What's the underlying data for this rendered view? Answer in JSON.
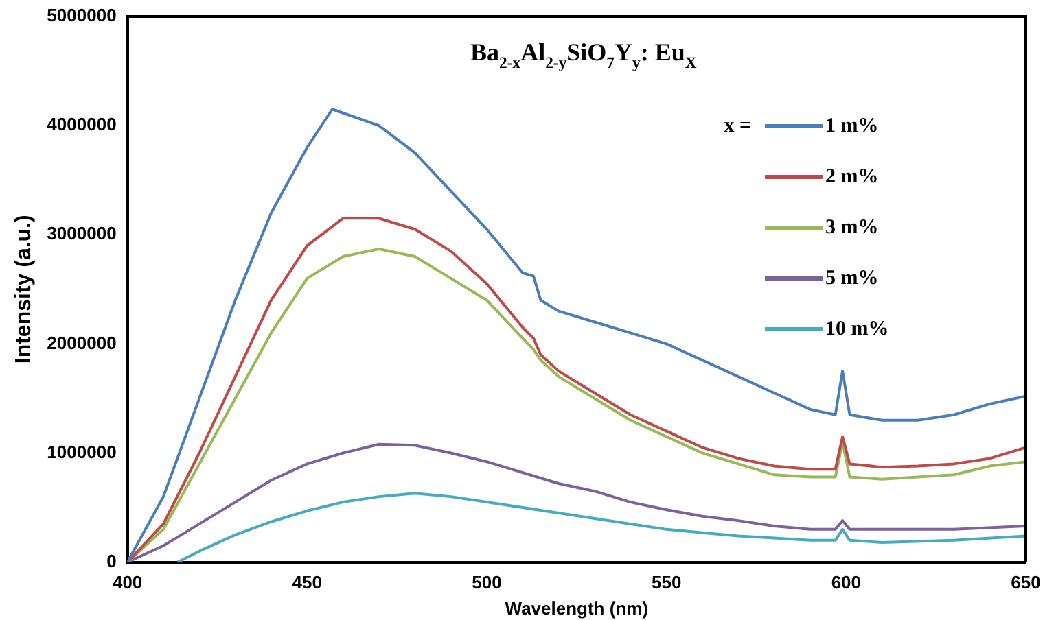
{
  "chart_data": {
    "type": "line",
    "title": "Ba$_{2-x}$Al$_{2-y}$SiO$_{7}$Y$_{y}$: Eu$_{X}$",
    "xlabel": "Wavelength (nm)",
    "ylabel": "Intensity (a.u.)",
    "legend_title": "x =",
    "legend": "top right",
    "grid": false,
    "marker": "none",
    "xlim": [
      400,
      650
    ],
    "xticks": [
      400,
      450,
      500,
      550,
      600,
      650
    ],
    "ylim": [
      0,
      5000000
    ],
    "yticks": [
      0,
      1000000,
      2000000,
      3000000,
      4000000,
      5000000
    ],
    "series": [
      {
        "name": "1 m%",
        "color": "#4a7ebb",
        "x": [
          400,
          410,
          420,
          430,
          440,
          450,
          457,
          470,
          480,
          490,
          500,
          510,
          513,
          515,
          520,
          530,
          540,
          550,
          560,
          570,
          580,
          590,
          597,
          599,
          601,
          610,
          620,
          630,
          640,
          650
        ],
        "values": [
          0,
          600000,
          1500000,
          2400000,
          3200000,
          3800000,
          4150000,
          4000000,
          3750000,
          3400000,
          3050000,
          2650000,
          2620000,
          2400000,
          2300000,
          2200000,
          2100000,
          2000000,
          1850000,
          1700000,
          1550000,
          1400000,
          1350000,
          1750000,
          1350000,
          1300000,
          1300000,
          1350000,
          1450000,
          1520000
        ]
      },
      {
        "name": "2 m%",
        "color": "#be4b48",
        "x": [
          400,
          410,
          420,
          430,
          440,
          450,
          460,
          470,
          480,
          490,
          500,
          510,
          513,
          515,
          520,
          530,
          540,
          550,
          560,
          570,
          580,
          590,
          597,
          599,
          601,
          610,
          620,
          630,
          640,
          650
        ],
        "values": [
          0,
          350000,
          1000000,
          1700000,
          2400000,
          2900000,
          3150000,
          3150000,
          3050000,
          2850000,
          2550000,
          2150000,
          2050000,
          1900000,
          1750000,
          1550000,
          1350000,
          1200000,
          1050000,
          950000,
          880000,
          850000,
          850000,
          1150000,
          900000,
          870000,
          880000,
          900000,
          950000,
          1050000
        ]
      },
      {
        "name": "3 m%",
        "color": "#98b954",
        "x": [
          400,
          410,
          420,
          430,
          440,
          450,
          460,
          470,
          480,
          490,
          500,
          510,
          513,
          515,
          520,
          530,
          540,
          550,
          560,
          570,
          580,
          590,
          597,
          599,
          601,
          610,
          620,
          630,
          640,
          650
        ],
        "values": [
          0,
          300000,
          900000,
          1500000,
          2100000,
          2600000,
          2800000,
          2870000,
          2800000,
          2600000,
          2400000,
          2050000,
          1950000,
          1850000,
          1700000,
          1500000,
          1300000,
          1150000,
          1000000,
          900000,
          800000,
          780000,
          780000,
          1100000,
          780000,
          760000,
          780000,
          800000,
          880000,
          920000
        ]
      },
      {
        "name": "5 m%",
        "color": "#7d60a0",
        "x": [
          400,
          410,
          420,
          430,
          440,
          450,
          460,
          470,
          480,
          490,
          500,
          510,
          520,
          530,
          540,
          550,
          560,
          570,
          580,
          590,
          597,
          599,
          601,
          610,
          630,
          650
        ],
        "values": [
          0,
          150000,
          350000,
          550000,
          750000,
          900000,
          1000000,
          1080000,
          1070000,
          1000000,
          920000,
          820000,
          720000,
          650000,
          550000,
          480000,
          420000,
          380000,
          330000,
          300000,
          300000,
          380000,
          300000,
          300000,
          300000,
          330000
        ]
      },
      {
        "name": "10 m%",
        "color": "#46aac5",
        "x": [
          414,
          420,
          430,
          440,
          450,
          460,
          470,
          480,
          490,
          500,
          510,
          520,
          530,
          540,
          550,
          560,
          570,
          580,
          590,
          597,
          599,
          601,
          610,
          630,
          650
        ],
        "values": [
          0,
          100000,
          250000,
          370000,
          470000,
          550000,
          600000,
          630000,
          600000,
          550000,
          500000,
          450000,
          400000,
          350000,
          300000,
          270000,
          240000,
          220000,
          200000,
          200000,
          300000,
          200000,
          180000,
          200000,
          240000
        ]
      }
    ]
  }
}
